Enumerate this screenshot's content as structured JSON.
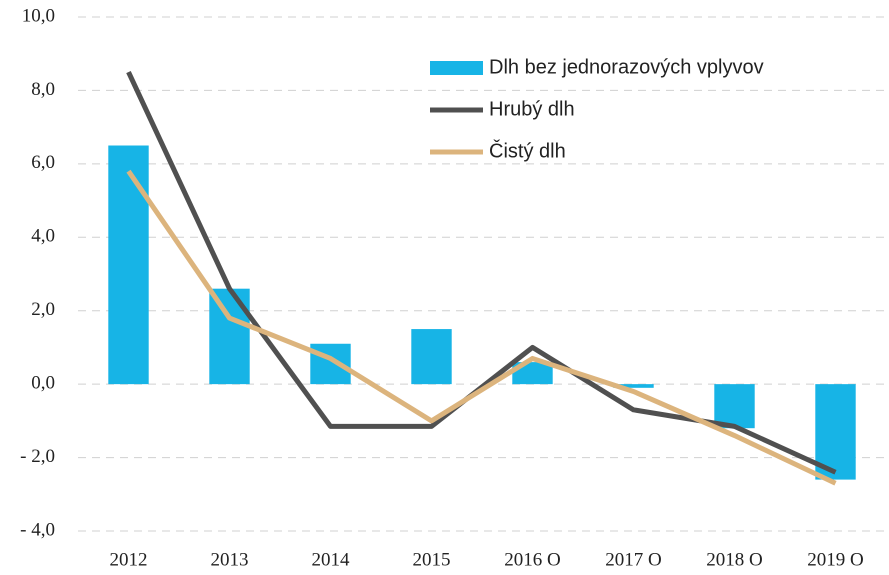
{
  "chart_data": {
    "type": "bar_line",
    "categories": [
      "2012",
      "2013",
      "2014",
      "2015",
      "2016 O",
      "2017 O",
      "2018 O",
      "2019 O"
    ],
    "series": [
      {
        "name": "Dlh bez jednorazových vplyvov",
        "type": "bar",
        "color": "#17b4e6",
        "values": [
          6.5,
          2.6,
          1.1,
          1.5,
          0.6,
          -0.1,
          -1.2,
          -2.6
        ]
      },
      {
        "name": "Hrubý dlh",
        "type": "line",
        "color": "#505050",
        "values": [
          8.5,
          2.6,
          -1.15,
          -1.15,
          1.0,
          -0.7,
          -1.15,
          -2.4
        ]
      },
      {
        "name": "Čistý dlh",
        "type": "line",
        "color": "#dcb47d",
        "values": [
          5.8,
          1.8,
          0.7,
          -1.0,
          0.7,
          -0.2,
          -1.4,
          -2.7
        ]
      }
    ],
    "ylim": [
      -4,
      10
    ],
    "yticks": [
      {
        "value": -4,
        "label": "- 4,0"
      },
      {
        "value": -2,
        "label": "- 2,0"
      },
      {
        "value": 0,
        "label": "0,0"
      },
      {
        "value": 2,
        "label": "2,0"
      },
      {
        "value": 4,
        "label": "4,0"
      },
      {
        "value": 6,
        "label": "6,0"
      },
      {
        "value": 8,
        "label": "8,0"
      },
      {
        "value": 10,
        "label": "10,0"
      }
    ],
    "grid": true,
    "legend": "top-right"
  }
}
